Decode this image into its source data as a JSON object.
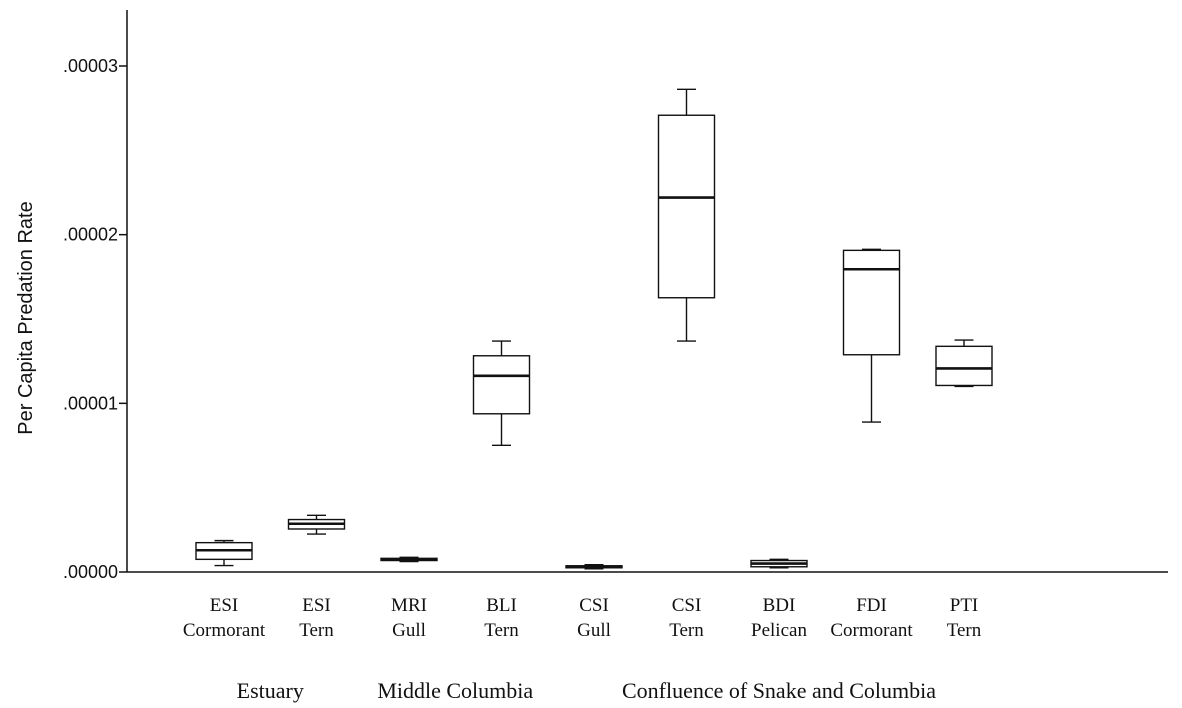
{
  "chart_data": {
    "type": "box",
    "ylabel": "Per Capita Predation Rate",
    "ylim": [
      0,
      3.26e-05
    ],
    "y_ticks": [
      {
        "value": 0,
        "label": ".00000"
      },
      {
        "value": 1e-05,
        "label": ".00001"
      },
      {
        "value": 2e-05,
        "label": ".00002"
      },
      {
        "value": 3e-05,
        "label": ".00003"
      }
    ],
    "groups": [
      {
        "label": "Estuary",
        "categories": [
          0,
          1
        ]
      },
      {
        "label": "Middle Columbia",
        "categories": [
          2,
          3
        ]
      },
      {
        "label": "Confluence of Snake and Columbia",
        "categories": [
          4,
          5,
          6,
          7,
          8
        ]
      }
    ],
    "categories": [
      {
        "line1": "ESI",
        "line2": "Cormorant",
        "min": 3.8e-07,
        "q1": 7.5e-07,
        "median": 1.29e-06,
        "q3": 1.74e-06,
        "max": 1.86e-06
      },
      {
        "line1": "ESI",
        "line2": "Tern",
        "min": 2.25e-06,
        "q1": 2.55e-06,
        "median": 2.86e-06,
        "q3": 3.11e-06,
        "max": 3.36e-06
      },
      {
        "line1": "MRI",
        "line2": "Gull",
        "min": 6.2e-07,
        "q1": 6.8e-07,
        "median": 7.5e-07,
        "q3": 8.1e-07,
        "max": 8.7e-07
      },
      {
        "line1": "BLI",
        "line2": "Tern",
        "min": 7.51e-06,
        "q1": 9.38e-06,
        "median": 1.163e-05,
        "q3": 1.282e-05,
        "max": 1.369e-05
      },
      {
        "line1": "CSI",
        "line2": "Gull",
        "min": 1.9e-07,
        "q1": 2.5e-07,
        "median": 3.1e-07,
        "q3": 3.7e-07,
        "max": 4.3e-07
      },
      {
        "line1": "CSI",
        "line2": "Tern",
        "min": 1.369e-05,
        "q1": 1.626e-05,
        "median": 2.22e-05,
        "q3": 2.708e-05,
        "max": 2.862e-05
      },
      {
        "line1": "BDI",
        "line2": "Pelican",
        "min": 2.5e-07,
        "q1": 3.1e-07,
        "median": 5e-07,
        "q3": 6.8e-07,
        "max": 7.5e-07
      },
      {
        "line1": "FDI",
        "line2": "Cormorant",
        "min": 8.89e-06,
        "q1": 1.288e-05,
        "median": 1.795e-05,
        "q3": 1.907e-05,
        "max": 1.913e-05
      },
      {
        "line1": "PTI",
        "line2": "Tern",
        "min": 1.1e-05,
        "q1": 1.106e-05,
        "median": 1.207e-05,
        "q3": 1.338e-05,
        "max": 1.375e-05
      }
    ]
  }
}
